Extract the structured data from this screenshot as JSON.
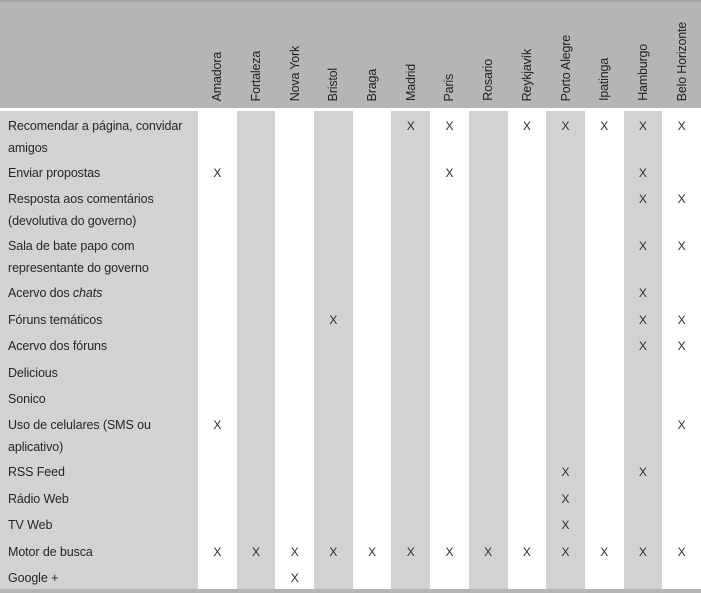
{
  "colors": {
    "page_bg": "#ffffff",
    "header_bg": "#b5b5b6",
    "stripe_bg": "#d2d2d3",
    "edge": "#a4a4a5",
    "text": "#262626"
  },
  "chart_data": {
    "type": "table",
    "title": "",
    "columns": [
      "Amadora",
      "Fortaleza",
      "Nova York",
      "Bristol",
      "Braga",
      "Madrid",
      "Paris",
      "Rosario",
      "Reykjavík",
      "Porto Alegre",
      "Ipatinga",
      "Hamburgo",
      "Belo Horizonte"
    ],
    "mark_glyph": "X",
    "rows": [
      {
        "label": "Recomendar a página, convidar amigos",
        "marks": [
          "",
          "",
          "",
          "",
          "",
          "X",
          "X",
          "",
          "X",
          "X",
          "X",
          "X",
          "X"
        ]
      },
      {
        "label": "Enviar propostas",
        "marks": [
          "X",
          "",
          "",
          "",
          "",
          "",
          "X",
          "",
          "",
          "",
          "",
          "X",
          ""
        ]
      },
      {
        "label": "Resposta aos comentários (devolutiva do governo)",
        "marks": [
          "",
          "",
          "",
          "",
          "",
          "",
          "",
          "",
          "",
          "",
          "",
          "X",
          "X"
        ]
      },
      {
        "label": "Sala de bate papo com representante do governo",
        "marks": [
          "",
          "",
          "",
          "",
          "",
          "",
          "",
          "",
          "",
          "",
          "",
          "X",
          "X"
        ]
      },
      {
        "label": "Acervo dos chats",
        "marks": [
          "",
          "",
          "",
          "",
          "",
          "",
          "",
          "",
          "",
          "",
          "",
          "X",
          ""
        ]
      },
      {
        "label": "Fóruns temáticos",
        "marks": [
          "",
          "",
          "",
          "X",
          "",
          "",
          "",
          "",
          "",
          "",
          "",
          "X",
          "X"
        ]
      },
      {
        "label": "Acervo dos fóruns",
        "marks": [
          "",
          "",
          "",
          "",
          "",
          "",
          "",
          "",
          "",
          "",
          "",
          "X",
          "X"
        ]
      },
      {
        "label": "Delicious",
        "marks": [
          "",
          "",
          "",
          "",
          "",
          "",
          "",
          "",
          "",
          "",
          "",
          "",
          ""
        ]
      },
      {
        "label": "Sonico",
        "marks": [
          "",
          "",
          "",
          "",
          "",
          "",
          "",
          "",
          "",
          "",
          "",
          "",
          ""
        ]
      },
      {
        "label": "Uso de celulares (SMS ou aplicativo)",
        "marks": [
          "X",
          "",
          "",
          "",
          "",
          "",
          "",
          "",
          "",
          "",
          "",
          "",
          "X"
        ]
      },
      {
        "label": "RSS Feed",
        "marks": [
          "",
          "",
          "",
          "",
          "",
          "",
          "",
          "",
          "",
          "X",
          "",
          "X",
          ""
        ]
      },
      {
        "label": "Rádio Web",
        "marks": [
          "",
          "",
          "",
          "",
          "",
          "",
          "",
          "",
          "",
          "X",
          "",
          "",
          ""
        ]
      },
      {
        "label": "TV Web",
        "marks": [
          "",
          "",
          "",
          "",
          "",
          "",
          "",
          "",
          "",
          "X",
          "",
          "",
          ""
        ]
      },
      {
        "label": "Motor de busca",
        "marks": [
          "X",
          "X",
          "X",
          "X",
          "X",
          "X",
          "X",
          "X",
          "X",
          "X",
          "X",
          "X",
          "X"
        ]
      },
      {
        "label": "Google +",
        "marks": [
          "",
          "",
          "X",
          "",
          "",
          "",
          "",
          "",
          "",
          "",
          "",
          "",
          ""
        ]
      }
    ]
  },
  "table": {
    "rows": [
      {
        "lines": [
          [
            {
              "t": "Recomendar a página, convidar"
            }
          ],
          [
            {
              "t": "amigos"
            }
          ]
        ]
      },
      {
        "lines": [
          [
            {
              "t": "Enviar propostas"
            }
          ]
        ]
      },
      {
        "lines": [
          [
            {
              "t": "Resposta aos comentários"
            }
          ],
          [
            {
              "t": "(devolutiva do governo)"
            }
          ]
        ]
      },
      {
        "lines": [
          [
            {
              "t": "Sala de bate papo com"
            }
          ],
          [
            {
              "t": "representante do governo"
            }
          ]
        ]
      },
      {
        "lines": [
          [
            {
              "t": "Acervo dos "
            },
            {
              "t": "chats",
              "i": true
            }
          ]
        ]
      },
      {
        "lines": [
          [
            {
              "t": "Fóruns temáticos"
            }
          ]
        ]
      },
      {
        "lines": [
          [
            {
              "t": "Acervo dos fóruns"
            }
          ]
        ]
      },
      {
        "lines": [
          [
            {
              "t": "Delicious"
            }
          ]
        ]
      },
      {
        "lines": [
          [
            {
              "t": "Sonico"
            }
          ]
        ]
      },
      {
        "lines": [
          [
            {
              "t": "Uso de celulares (SMS ou"
            }
          ],
          [
            {
              "t": "aplicativo)"
            }
          ]
        ]
      },
      {
        "lines": [
          [
            {
              "t": "RSS Feed"
            }
          ]
        ]
      },
      {
        "lines": [
          [
            {
              "t": "Rádio Web"
            }
          ]
        ]
      },
      {
        "lines": [
          [
            {
              "t": "TV Web"
            }
          ]
        ]
      },
      {
        "lines": [
          [
            {
              "t": "Motor de busca"
            }
          ]
        ]
      },
      {
        "lines": [
          [
            {
              "t": "Google +"
            }
          ]
        ]
      }
    ]
  }
}
